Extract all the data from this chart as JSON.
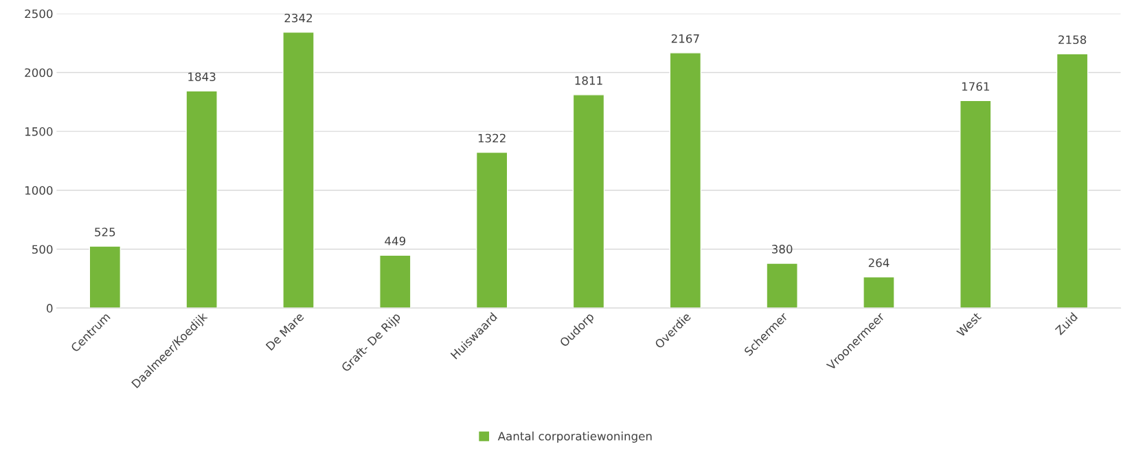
{
  "chart_data": {
    "type": "bar",
    "categories": [
      "Centrum",
      "Daalmeer/Koedijk",
      "De Mare",
      "Graft- De Rijp",
      "Huiswaard",
      "Oudorp",
      "Overdie",
      "Schermer",
      "Vroonermeer",
      "West",
      "Zuid"
    ],
    "series": [
      {
        "name": "Aantal corporatiewoningen",
        "color": "#76b73a",
        "values": [
          525,
          1843,
          2342,
          449,
          1322,
          1811,
          2167,
          380,
          264,
          1761,
          2158
        ]
      }
    ],
    "ylim": [
      0,
      2500
    ],
    "yticks": [
      0,
      500,
      1000,
      1500,
      2000,
      2500
    ],
    "grid": "y",
    "legend": "bottom",
    "data_labels": true
  }
}
